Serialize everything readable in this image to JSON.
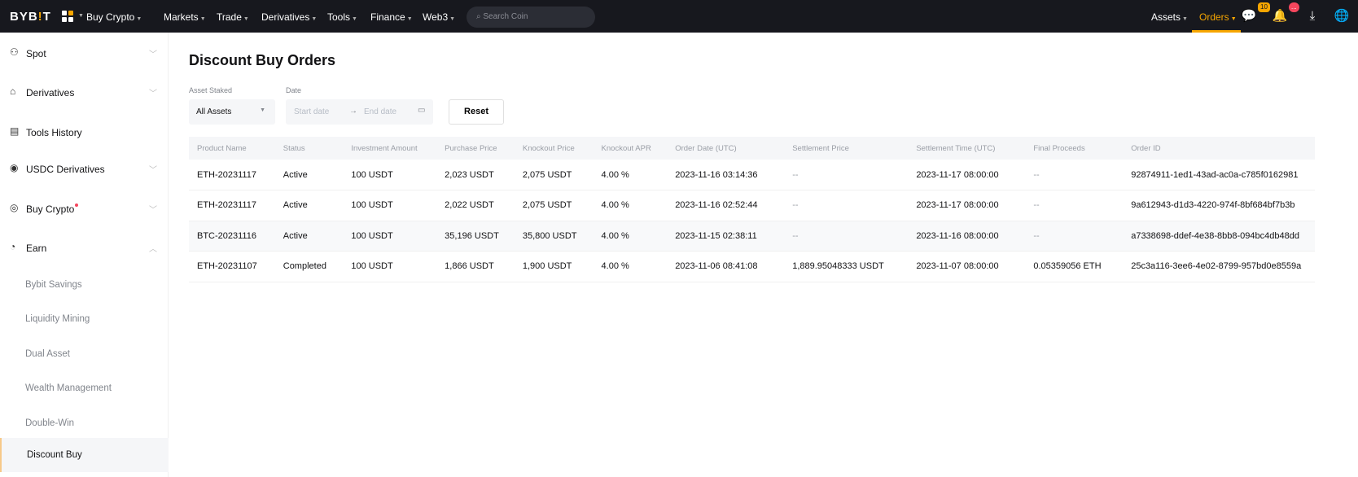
{
  "topbar": {
    "logo": "BYBIT",
    "nav": [
      "Buy Crypto",
      "Markets",
      "Trade",
      "Derivatives",
      "Tools",
      "Finance",
      "Web3"
    ],
    "search_placeholder": "Search Coin",
    "assets": "Assets",
    "orders": "Orders",
    "chat_badge": "10",
    "bell_badge": "...",
    "accent": "#f7a600"
  },
  "sidebar": {
    "items": [
      {
        "label": "Spot",
        "icon": "coins-icon"
      },
      {
        "label": "Derivatives",
        "icon": "briefcase-icon"
      },
      {
        "label": "Tools History",
        "icon": "receipt-icon"
      },
      {
        "label": "USDC Derivatives",
        "icon": "usdc-icon"
      },
      {
        "label": "Buy Crypto",
        "icon": "buy-crypto-icon"
      },
      {
        "label": "Earn",
        "icon": "earn-icon"
      }
    ],
    "sub_items": [
      "Bybit Savings",
      "Liquidity Mining",
      "Dual Asset",
      "Wealth Management",
      "Double-Win",
      "Discount Buy"
    ],
    "selected": "Discount Buy"
  },
  "main": {
    "title": "Discount Buy Orders",
    "filters": {
      "asset_label": "Asset Staked",
      "asset_value": "All Assets",
      "date_label": "Date",
      "start_placeholder": "Start date",
      "end_placeholder": "End date",
      "reset": "Reset"
    },
    "table": {
      "columns": [
        "Product Name",
        "Status",
        "Investment Amount",
        "Purchase Price",
        "Knockout Price",
        "Knockout APR",
        "Order Date (UTC)",
        "Settlement Price",
        "Settlement Time (UTC)",
        "Final Proceeds",
        "Order ID"
      ],
      "rows": [
        [
          "ETH-20231117",
          "Active",
          "100 USDT",
          "2,023 USDT",
          "2,075 USDT",
          "4.00 %",
          "2023-11-16 03:14:36",
          "--",
          "2023-11-17 08:00:00",
          "--",
          "92874911-1ed1-43ad-ac0a-c785f0162981"
        ],
        [
          "ETH-20231117",
          "Active",
          "100 USDT",
          "2,022 USDT",
          "2,075 USDT",
          "4.00 %",
          "2023-11-16 02:52:44",
          "--",
          "2023-11-17 08:00:00",
          "--",
          "9a612943-d1d3-4220-974f-8bf684bf7b3b"
        ],
        [
          "BTC-20231116",
          "Active",
          "100 USDT",
          "35,196 USDT",
          "35,800 USDT",
          "4.00 %",
          "2023-11-15 02:38:11",
          "--",
          "2023-11-16 08:00:00",
          "--",
          "a7338698-ddef-4e38-8bb8-094bc4db48dd"
        ],
        [
          "ETH-20231107",
          "Completed",
          "100 USDT",
          "1,866 USDT",
          "1,900 USDT",
          "4.00 %",
          "2023-11-06 08:41:08",
          "1,889.95048333 USDT",
          "2023-11-07 08:00:00",
          "0.05359056 ETH",
          "25c3a116-3ee6-4e02-8799-957bd0e8559a"
        ]
      ]
    }
  }
}
